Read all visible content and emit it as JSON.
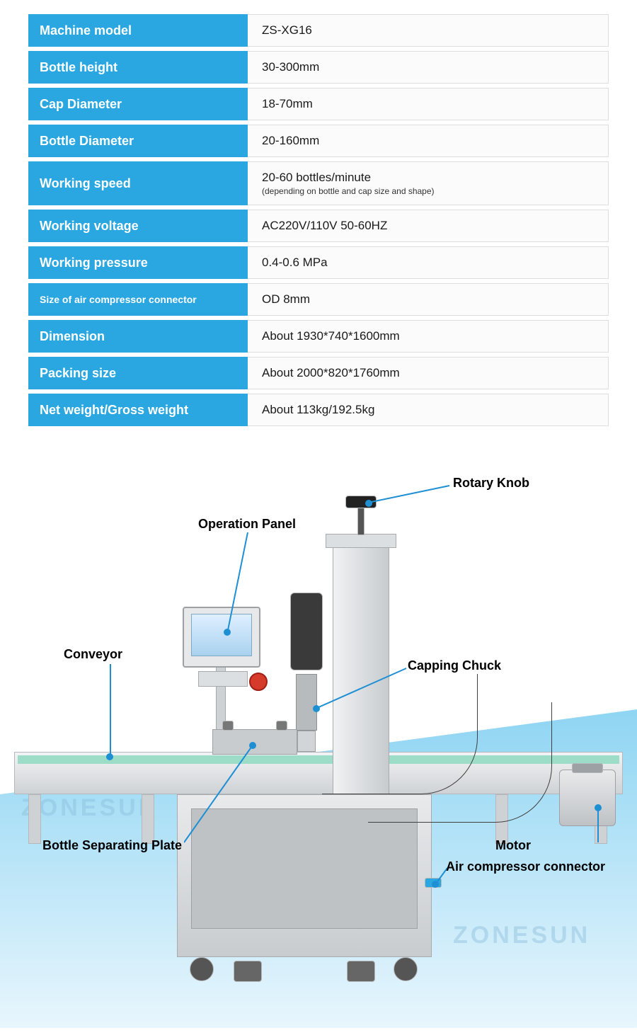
{
  "colors": {
    "brand_blue": "#2aa7e0",
    "row_alt_gray": "#f5f5f5",
    "text_black": "#1a1a1a",
    "leader_blue": "#1f8fd4",
    "dot_blue": "#1f8fd4",
    "bg_tri_start": "#6fc9f2",
    "bg_tri_end": "#ffffff",
    "watermark": "rgba(255,255,255,0.55)"
  },
  "table": {
    "label_bg": "#2aa7e0",
    "rows": [
      {
        "label": "Machine model",
        "value": "ZS-XG16",
        "small": false
      },
      {
        "label": "Bottle height",
        "value": "30-300mm",
        "small": false
      },
      {
        "label": "Cap Diameter",
        "value": "18-70mm",
        "small": false
      },
      {
        "label": "Bottle Diameter",
        "value": "20-160mm",
        "small": false
      },
      {
        "label": "Working speed",
        "value": "20-60 bottles/minute",
        "sub": "(depending on bottle and cap size and shape)",
        "small": false
      },
      {
        "label": "Working voltage",
        "value": "AC220V/110V 50-60HZ",
        "small": false
      },
      {
        "label": "Working pressure",
        "value": "0.4-0.6 MPa",
        "small": false
      },
      {
        "label": "Size of air compressor connector",
        "value": "OD 8mm",
        "small": true
      },
      {
        "label": "Dimension",
        "value": "About 1930*740*1600mm",
        "small": false
      },
      {
        "label": "Packing size",
        "value": "About 2000*820*1760mm",
        "small": false
      },
      {
        "label": "Net weight/Gross weight",
        "value": "About 113kg/192.5kg",
        "small": false
      }
    ]
  },
  "diagram": {
    "watermark_text": "ZONESUN",
    "callouts": {
      "rotary_knob": "Rotary Knob",
      "operation_panel": "Operation Panel",
      "conveyor": "Conveyor",
      "capping_chuck": "Capping Chuck",
      "bottle_separating_plate": "Bottle Separating Plate",
      "motor": "Motor",
      "air_compressor_connector": "Air compressor connector"
    }
  }
}
